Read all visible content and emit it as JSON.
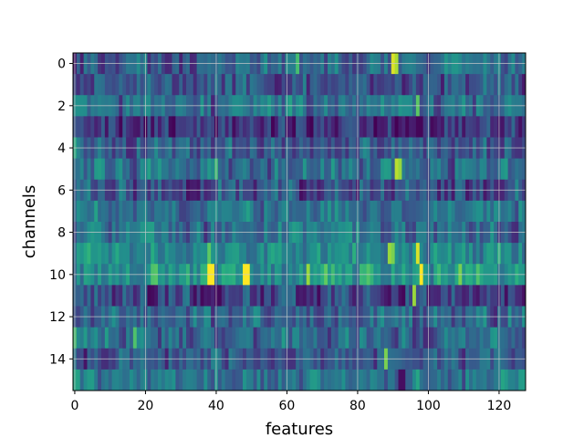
{
  "chart_data": {
    "type": "heatmap",
    "title": "",
    "xlabel": "features",
    "ylabel": "channels",
    "n_rows": 16,
    "n_cols": 128,
    "xlim": [
      -0.5,
      127.5
    ],
    "ylim": [
      15.5,
      -0.5
    ],
    "xticks": [
      0,
      20,
      40,
      60,
      80,
      100,
      120
    ],
    "xtick_labels": [
      "0",
      "20",
      "40",
      "60",
      "80",
      "100",
      "120"
    ],
    "yticks": [
      0,
      2,
      4,
      6,
      8,
      10,
      12,
      14
    ],
    "ytick_labels": [
      "0",
      "2",
      "4",
      "6",
      "8",
      "10",
      "12",
      "14"
    ],
    "grid": true,
    "colormap": "viridis",
    "row_base": [
      0.32,
      0.3,
      0.36,
      0.16,
      0.3,
      0.36,
      0.26,
      0.4,
      0.36,
      0.48,
      0.54,
      0.22,
      0.32,
      0.36,
      0.28,
      0.4
    ],
    "hotspots": [
      {
        "row": 0,
        "col": 90,
        "value": 0.95
      },
      {
        "row": 0,
        "col": 91,
        "value": 0.88
      },
      {
        "row": 0,
        "col": 63,
        "value": 0.7
      },
      {
        "row": 2,
        "col": 97,
        "value": 0.75
      },
      {
        "row": 3,
        "col": 97,
        "value": 0.02
      },
      {
        "row": 3,
        "col": 98,
        "value": 0.02
      },
      {
        "row": 4,
        "col": 0,
        "value": 0.62
      },
      {
        "row": 5,
        "col": 91,
        "value": 0.9
      },
      {
        "row": 5,
        "col": 92,
        "value": 0.85
      },
      {
        "row": 5,
        "col": 40,
        "value": 0.68
      },
      {
        "row": 9,
        "col": 89,
        "value": 0.85
      },
      {
        "row": 9,
        "col": 90,
        "value": 0.8
      },
      {
        "row": 9,
        "col": 97,
        "value": 0.95
      },
      {
        "row": 9,
        "col": 38,
        "value": 0.75
      },
      {
        "row": 10,
        "col": 38,
        "value": 1.0
      },
      {
        "row": 10,
        "col": 39,
        "value": 1.0
      },
      {
        "row": 10,
        "col": 48,
        "value": 1.0
      },
      {
        "row": 10,
        "col": 49,
        "value": 1.0
      },
      {
        "row": 10,
        "col": 98,
        "value": 1.0
      },
      {
        "row": 10,
        "col": 66,
        "value": 0.85
      },
      {
        "row": 10,
        "col": 109,
        "value": 0.8
      },
      {
        "row": 11,
        "col": 93,
        "value": 0.02
      },
      {
        "row": 11,
        "col": 96,
        "value": 0.85
      },
      {
        "row": 11,
        "col": 21,
        "value": 0.02
      },
      {
        "row": 13,
        "col": 17,
        "value": 0.72
      },
      {
        "row": 13,
        "col": 0,
        "value": 0.7
      },
      {
        "row": 14,
        "col": 88,
        "value": 0.8
      },
      {
        "row": 15,
        "col": 92,
        "value": 0.05
      },
      {
        "row": 15,
        "col": 93,
        "value": 0.05
      }
    ]
  }
}
